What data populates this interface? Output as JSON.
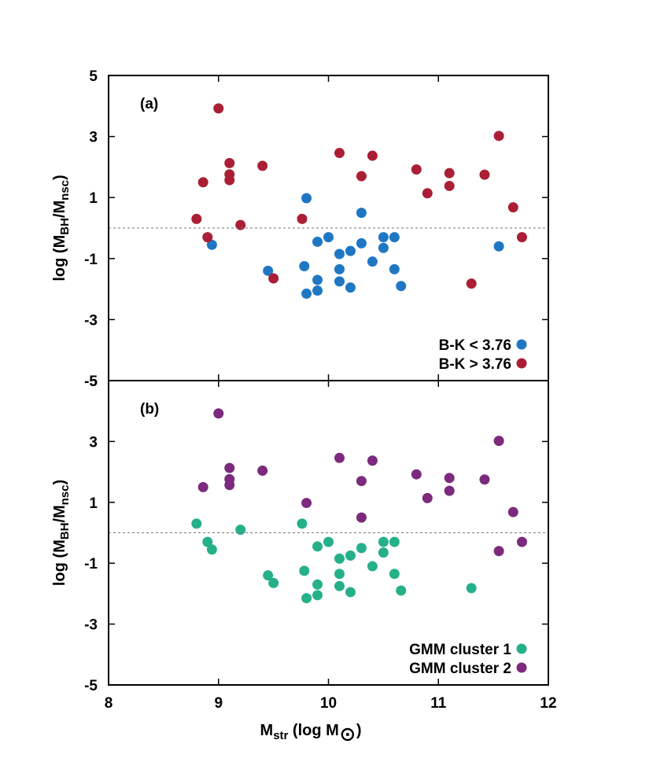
{
  "colors": {
    "blue": "#1f77c4",
    "red": "#aa1f35",
    "teal": "#26b08a",
    "purple": "#7b2a7d",
    "frame": "#000000",
    "reference_line": "#777777"
  },
  "axis_title": {
    "x_main": "M",
    "x_sub": "str",
    "x_open": " (log M",
    "x_sun_symbol": "sun-symbol",
    "x_close": ")",
    "y_open": "log (M",
    "y_sub1": "BH",
    "y_mid": "/M",
    "y_sub2": "nsc",
    "y_close": ")"
  },
  "chart_data": [
    {
      "type": "scatter",
      "panel_label": "(a)",
      "xlim": [
        8,
        12
      ],
      "ylim": [
        -5,
        5
      ],
      "x_ticks": [
        "8",
        "9",
        "10",
        "11",
        "12"
      ],
      "y_ticks": [
        "-5",
        "-3",
        "-1",
        "1",
        "3",
        "5"
      ],
      "reference_line_y": 0,
      "legend_position": "bottom-right",
      "series": [
        {
          "name": "B-K < 3.76",
          "color": "#1f77c4",
          "points": [
            [
              8.94,
              -0.55
            ],
            [
              9.45,
              -1.4
            ],
            [
              9.78,
              -1.25
            ],
            [
              9.8,
              0.98
            ],
            [
              9.8,
              -2.15
            ],
            [
              9.9,
              -0.45
            ],
            [
              9.9,
              -1.7
            ],
            [
              9.9,
              -2.05
            ],
            [
              10.0,
              -0.3
            ],
            [
              10.1,
              -0.85
            ],
            [
              10.1,
              -1.35
            ],
            [
              10.1,
              -1.75
            ],
            [
              10.2,
              -0.75
            ],
            [
              10.2,
              -1.95
            ],
            [
              10.3,
              0.5
            ],
            [
              10.3,
              -0.5
            ],
            [
              10.4,
              -1.1
            ],
            [
              10.5,
              -0.3
            ],
            [
              10.5,
              -0.65
            ],
            [
              10.6,
              -0.3
            ],
            [
              10.6,
              -1.35
            ],
            [
              10.66,
              -1.9
            ],
            [
              11.55,
              -0.6
            ]
          ]
        },
        {
          "name": "B-K > 3.76",
          "color": "#aa1f35",
          "points": [
            [
              8.8,
              0.3
            ],
            [
              8.86,
              1.5
            ],
            [
              8.9,
              -0.3
            ],
            [
              9.0,
              3.92
            ],
            [
              9.1,
              2.13
            ],
            [
              9.1,
              1.76
            ],
            [
              9.1,
              1.57
            ],
            [
              9.2,
              0.1
            ],
            [
              9.4,
              2.04
            ],
            [
              9.5,
              -1.65
            ],
            [
              9.76,
              0.3
            ],
            [
              10.1,
              2.46
            ],
            [
              10.3,
              1.7
            ],
            [
              10.4,
              2.37
            ],
            [
              10.8,
              1.92
            ],
            [
              10.9,
              1.14
            ],
            [
              11.1,
              1.8
            ],
            [
              11.1,
              1.38
            ],
            [
              11.3,
              -1.82
            ],
            [
              11.42,
              1.75
            ],
            [
              11.55,
              3.02
            ],
            [
              11.68,
              0.68
            ],
            [
              11.76,
              -0.3
            ]
          ]
        }
      ]
    },
    {
      "type": "scatter",
      "panel_label": "(b)",
      "xlim": [
        8,
        12
      ],
      "ylim": [
        -5,
        5
      ],
      "x_ticks": [
        "8",
        "9",
        "10",
        "11",
        "12"
      ],
      "y_ticks": [
        "-5",
        "-3",
        "-1",
        "1",
        "3",
        "5"
      ],
      "reference_line_y": 0,
      "legend_position": "bottom-right",
      "series": [
        {
          "name": "GMM cluster 1",
          "color": "#26b08a",
          "points": [
            [
              8.8,
              0.3
            ],
            [
              8.9,
              -0.3
            ],
            [
              8.94,
              -0.55
            ],
            [
              9.2,
              0.1
            ],
            [
              9.45,
              -1.4
            ],
            [
              9.5,
              -1.65
            ],
            [
              9.76,
              0.3
            ],
            [
              9.78,
              -1.25
            ],
            [
              9.8,
              -2.15
            ],
            [
              9.9,
              -0.45
            ],
            [
              9.9,
              -1.7
            ],
            [
              9.9,
              -2.05
            ],
            [
              10.0,
              -0.3
            ],
            [
              10.1,
              -0.85
            ],
            [
              10.1,
              -1.35
            ],
            [
              10.1,
              -1.75
            ],
            [
              10.2,
              -0.75
            ],
            [
              10.2,
              -1.95
            ],
            [
              10.3,
              -0.5
            ],
            [
              10.4,
              -1.1
            ],
            [
              10.5,
              -0.3
            ],
            [
              10.5,
              -0.65
            ],
            [
              10.6,
              -0.3
            ],
            [
              10.6,
              -1.35
            ],
            [
              10.66,
              -1.9
            ],
            [
              11.3,
              -1.82
            ]
          ]
        },
        {
          "name": "GMM cluster 2",
          "color": "#7b2a7d",
          "points": [
            [
              8.86,
              1.5
            ],
            [
              9.0,
              3.92
            ],
            [
              9.1,
              2.13
            ],
            [
              9.1,
              1.76
            ],
            [
              9.1,
              1.57
            ],
            [
              9.4,
              2.04
            ],
            [
              9.8,
              0.98
            ],
            [
              10.1,
              2.46
            ],
            [
              10.3,
              1.7
            ],
            [
              10.3,
              0.5
            ],
            [
              10.4,
              2.37
            ],
            [
              10.8,
              1.92
            ],
            [
              10.9,
              1.14
            ],
            [
              11.1,
              1.8
            ],
            [
              11.1,
              1.38
            ],
            [
              11.42,
              1.75
            ],
            [
              11.55,
              3.02
            ],
            [
              11.55,
              -0.6
            ],
            [
              11.68,
              0.68
            ],
            [
              11.76,
              -0.3
            ]
          ]
        }
      ]
    }
  ]
}
